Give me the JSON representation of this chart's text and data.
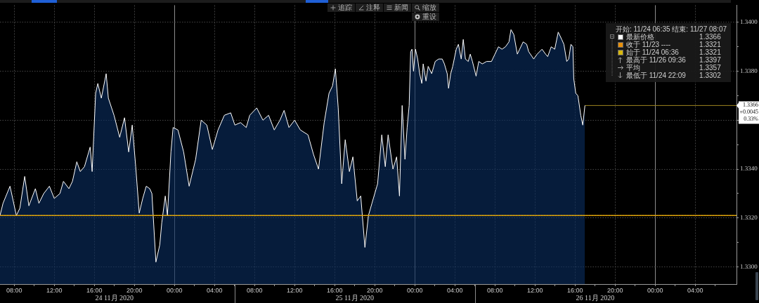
{
  "chart_data": {
    "type": "area",
    "legend_title": "开始: 11/24 06:35 结束: 11/27 08:07",
    "series": [
      {
        "name": "最新价格",
        "color": "#ffffff",
        "x": [
          "2020-11-24T06:35",
          "2020-11-24T06:53",
          "2020-11-24T07:35",
          "2020-11-24T08:13",
          "2020-11-24T08:34",
          "2020-11-24T09:03",
          "2020-11-24T09:28",
          "2020-11-24T10:07",
          "2020-11-24T10:28",
          "2020-11-24T10:57",
          "2020-11-24T11:31",
          "2020-11-24T12:00",
          "2020-11-24T12:34",
          "2020-11-24T12:55",
          "2020-11-24T13:28",
          "2020-11-24T13:49",
          "2020-11-24T14:15",
          "2020-11-24T14:36",
          "2020-11-24T15:01",
          "2020-11-24T15:35",
          "2020-11-24T15:47",
          "2020-11-24T16:08",
          "2020-11-24T16:21",
          "2020-11-24T16:42",
          "2020-11-24T17:11",
          "2020-11-24T17:24",
          "2020-11-24T17:58",
          "2020-11-24T18:32",
          "2020-11-24T19:01",
          "2020-11-24T19:26",
          "2020-11-24T19:47",
          "2020-11-24T20:08",
          "2020-11-24T20:29",
          "2020-11-24T20:50",
          "2020-11-24T21:11",
          "2020-11-24T21:32",
          "2020-11-24T21:45",
          "2020-11-24T22:09",
          "2020-11-24T22:32",
          "2020-11-24T22:44",
          "2020-11-24T23:05",
          "2020-11-24T23:18",
          "2020-11-24T23:39",
          "2020-11-24T23:52",
          "2020-11-25T00:21",
          "2020-11-25T00:55",
          "2020-11-25T01:28",
          "2020-11-25T02:07",
          "2020-11-25T02:40",
          "2020-11-25T03:14",
          "2020-11-25T03:47",
          "2020-11-25T04:21",
          "2020-11-25T04:59",
          "2020-11-25T05:37",
          "2020-11-25T06:02",
          "2020-11-25T06:36",
          "2020-11-25T07:10",
          "2020-11-25T07:31",
          "2020-11-25T08:13",
          "2020-11-25T08:50",
          "2020-11-25T09:24",
          "2020-11-25T09:58",
          "2020-11-25T10:32",
          "2020-11-25T10:57",
          "2020-11-25T11:26",
          "2020-11-25T12:00",
          "2020-11-25T12:34",
          "2020-11-25T13:20",
          "2020-11-25T13:53",
          "2020-11-25T14:23",
          "2020-11-25T14:57",
          "2020-11-25T15:26",
          "2020-11-25T15:47",
          "2020-11-25T16:04",
          "2020-11-25T16:21",
          "2020-11-25T16:42",
          "2020-11-25T17:03",
          "2020-11-25T17:28",
          "2020-11-25T17:49",
          "2020-11-25T18:15",
          "2020-11-25T18:36",
          "2020-11-25T19:01",
          "2020-11-25T19:22",
          "2020-11-25T19:43",
          "2020-11-25T20:17",
          "2020-11-25T20:42",
          "2020-11-25T21:03",
          "2020-11-25T21:20",
          "2020-11-25T21:49",
          "2020-11-25T22:11",
          "2020-11-25T22:28",
          "2020-11-25T22:44",
          "2020-11-25T23:01",
          "2020-11-25T23:14",
          "2020-11-25T23:26",
          "2020-11-25T23:35",
          "2020-11-25T23:43",
          "2020-11-25T23:52",
          "2020-11-26T00:04",
          "2020-11-26T00:17",
          "2020-11-26T00:29",
          "2020-11-26T00:42",
          "2020-11-26T00:50",
          "2020-11-26T01:07",
          "2020-11-26T01:20",
          "2020-11-26T01:41",
          "2020-11-26T02:02",
          "2020-11-26T02:23",
          "2020-11-26T02:44",
          "2020-11-26T02:57",
          "2020-11-26T03:14",
          "2020-11-26T03:22",
          "2020-11-26T03:35",
          "2020-11-26T03:47",
          "2020-11-26T04:08",
          "2020-11-26T04:21",
          "2020-11-26T04:38",
          "2020-11-26T04:50",
          "2020-11-26T05:03",
          "2020-11-26T05:20",
          "2020-11-26T05:32",
          "2020-11-26T05:45",
          "2020-11-26T06:07",
          "2020-11-26T06:23",
          "2020-11-26T06:44",
          "2020-11-26T07:10",
          "2020-11-26T07:39",
          "2020-11-26T08:00",
          "2020-11-26T08:21",
          "2020-11-26T08:42",
          "2020-11-26T09:03",
          "2020-11-26T09:24",
          "2020-11-26T09:36",
          "2020-11-26T09:53",
          "2020-11-26T10:14",
          "2020-11-26T10:28",
          "2020-11-26T10:49",
          "2020-11-26T11:10",
          "2020-11-26T11:22",
          "2020-11-26T11:52",
          "2020-11-26T12:13",
          "2020-11-26T12:42",
          "2020-11-26T13:03",
          "2020-11-26T13:16",
          "2020-11-26T13:37",
          "2020-11-26T13:58",
          "2020-11-26T14:19",
          "2020-11-26T14:40",
          "2020-11-26T14:53",
          "2020-11-26T15:10",
          "2020-11-26T15:22",
          "2020-11-26T15:35",
          "2020-11-26T15:47",
          "2020-11-26T15:52",
          "2020-11-26T16:04",
          "2020-11-26T16:17",
          "2020-11-26T16:34",
          "2020-11-26T16:46",
          "2020-11-26T16:59"
        ],
        "values": [
          1.3321,
          1.3326,
          1.3333,
          1.3321,
          1.3324,
          1.3337,
          1.3325,
          1.3332,
          1.3326,
          1.333,
          1.3333,
          1.3328,
          1.333,
          1.3335,
          1.3332,
          1.3335,
          1.3343,
          1.3339,
          1.3341,
          1.3349,
          1.3339,
          1.3371,
          1.3375,
          1.3369,
          1.3379,
          1.3369,
          1.3362,
          1.3353,
          1.3361,
          1.3347,
          1.3358,
          1.3341,
          1.3322,
          1.3328,
          1.3333,
          1.3332,
          1.333,
          1.3302,
          1.3309,
          1.3318,
          1.3329,
          1.3321,
          1.3347,
          1.3357,
          1.3356,
          1.3347,
          1.3333,
          1.3344,
          1.336,
          1.3358,
          1.3348,
          1.3356,
          1.3362,
          1.3363,
          1.3358,
          1.3359,
          1.3357,
          1.3362,
          1.3365,
          1.336,
          1.3362,
          1.3356,
          1.336,
          1.3364,
          1.3357,
          1.336,
          1.3356,
          1.3354,
          1.3346,
          1.334,
          1.3359,
          1.3371,
          1.3374,
          1.3381,
          1.3365,
          1.3334,
          1.3352,
          1.3339,
          1.3345,
          1.3327,
          1.3329,
          1.3308,
          1.3321,
          1.3326,
          1.3334,
          1.3354,
          1.3341,
          1.3354,
          1.334,
          1.3345,
          1.3329,
          1.3366,
          1.3344,
          1.3357,
          1.3366,
          1.3388,
          1.3389,
          1.338,
          1.3389,
          1.3385,
          1.3379,
          1.3375,
          1.3383,
          1.3376,
          1.3382,
          1.3379,
          1.3384,
          1.3385,
          1.3385,
          1.3383,
          1.3379,
          1.3373,
          1.3379,
          1.3382,
          1.3389,
          1.3391,
          1.3385,
          1.3393,
          1.3385,
          1.3384,
          1.3387,
          1.3384,
          1.3378,
          1.3384,
          1.3383,
          1.3384,
          1.3384,
          1.3387,
          1.339,
          1.3389,
          1.339,
          1.3392,
          1.3397,
          1.3395,
          1.3387,
          1.3389,
          1.3392,
          1.3391,
          1.3388,
          1.3385,
          1.3387,
          1.3389,
          1.3387,
          1.3386,
          1.339,
          1.3389,
          1.3396,
          1.3393,
          1.3391,
          1.3384,
          1.3385,
          1.3391,
          1.339,
          1.3377,
          1.3371,
          1.337,
          1.3362,
          1.3358,
          1.3366
        ]
      },
      {
        "type": "line",
        "color": "#9c8420",
        "x": [
          "2020-11-26T16:59",
          "2020-11-27T08:07"
        ],
        "values": [
          1.3366,
          1.3366
        ]
      }
    ],
    "xlim": [
      "2020-11-24T06:35",
      "2020-11-27T08:07"
    ],
    "xticks": [
      {
        "value": "2020-11-24T08:00",
        "label": "08:00"
      },
      {
        "value": "2020-11-24T10:00",
        "label": null
      },
      {
        "value": "2020-11-24T12:00",
        "label": "12:00"
      },
      {
        "value": "2020-11-24T14:00",
        "label": null
      },
      {
        "value": "2020-11-24T16:00",
        "label": "16:00"
      },
      {
        "value": "2020-11-24T18:00",
        "label": null
      },
      {
        "value": "2020-11-24T20:00",
        "label": "20:00"
      },
      {
        "value": "2020-11-24T22:00",
        "label": null
      },
      {
        "value": "2020-11-25T00:00",
        "label": "00:00"
      },
      {
        "value": "2020-11-25T02:00",
        "label": null
      },
      {
        "value": "2020-11-25T04:00",
        "label": "04:00"
      },
      {
        "value": "2020-11-25T06:00",
        "label": null
      },
      {
        "value": "2020-11-25T08:00",
        "label": "08:00"
      },
      {
        "value": "2020-11-25T10:00",
        "label": null
      },
      {
        "value": "2020-11-25T12:00",
        "label": "12:00"
      },
      {
        "value": "2020-11-25T14:00",
        "label": null
      },
      {
        "value": "2020-11-25T16:00",
        "label": "16:00"
      },
      {
        "value": "2020-11-25T18:00",
        "label": null
      },
      {
        "value": "2020-11-25T20:00",
        "label": "20:00"
      },
      {
        "value": "2020-11-25T22:00",
        "label": null
      },
      {
        "value": "2020-11-26T00:00",
        "label": "00:00"
      },
      {
        "value": "2020-11-26T02:00",
        "label": null
      },
      {
        "value": "2020-11-26T04:00",
        "label": "04:00"
      },
      {
        "value": "2020-11-26T06:00",
        "label": null
      },
      {
        "value": "2020-11-26T08:00",
        "label": "08:00"
      },
      {
        "value": "2020-11-26T10:00",
        "label": null
      },
      {
        "value": "2020-11-26T12:00",
        "label": "12:00"
      },
      {
        "value": "2020-11-26T14:00",
        "label": null
      },
      {
        "value": "2020-11-26T16:00",
        "label": "16:00"
      },
      {
        "value": "2020-11-26T18:00",
        "label": null
      },
      {
        "value": "2020-11-26T20:00",
        "label": "20:00"
      },
      {
        "value": "2020-11-26T22:00",
        "label": null
      },
      {
        "value": "2020-11-27T00:00",
        "label": "00:00"
      },
      {
        "value": "2020-11-27T02:00",
        "label": null
      },
      {
        "value": "2020-11-27T04:00",
        "label": "04:00"
      },
      {
        "value": "2020-11-27T06:00",
        "label": null
      }
    ],
    "x2lim": [
      "2020-11-24T06:35",
      "2020-11-27T08:07"
    ],
    "x2ticks": [
      {
        "value": "2020-11-24T18:00",
        "label": "24 11月 2020"
      },
      {
        "value": "2020-11-25T06:00",
        "label": null
      },
      {
        "value": "2020-11-25T18:00",
        "label": "25 11月 2020"
      },
      {
        "value": "2020-11-26T06:00",
        "label": null
      },
      {
        "value": "2020-11-26T18:00",
        "label": "26 11月 2020"
      }
    ],
    "ylim": [
      1.3293,
      1.3407
    ],
    "yticks": [
      {
        "value": 1.33,
        "label": "1.3300"
      },
      {
        "value": 1.331,
        "label": null
      },
      {
        "value": 1.332,
        "label": "1.3320"
      },
      {
        "value": 1.333,
        "label": null
      },
      {
        "value": 1.334,
        "label": "1.3340"
      },
      {
        "value": 1.335,
        "label": null
      },
      {
        "value": 1.336,
        "label": null
      },
      {
        "value": 1.337,
        "label": null
      },
      {
        "value": 1.338,
        "label": "1.3380"
      },
      {
        "value": 1.339,
        "label": null
      },
      {
        "value": 1.34,
        "label": "1.3400"
      }
    ],
    "ref_lines": [
      {
        "axis": "y",
        "value": 1.3321,
        "label": "收于 11/23 ----",
        "color": "#e8900c",
        "line_style": "dotted"
      },
      {
        "axis": "y",
        "value": 1.3321,
        "color": "#d8b80c",
        "line_style": "dotted"
      }
    ],
    "annotations": [
      "追踪",
      "注释",
      "新闻",
      "缩放",
      "重设",
      "1.3366",
      "+0.0045",
      "0.33%",
      "1.3366",
      "1.3321",
      "始于 11/24 06:36",
      "1.3321",
      "最高于 11/26 09:36",
      "1.3397",
      "平均",
      "1.3357",
      "最低于 11/24 22:09",
      "1.3302"
    ],
    "grid": true,
    "legend": "top right"
  }
}
